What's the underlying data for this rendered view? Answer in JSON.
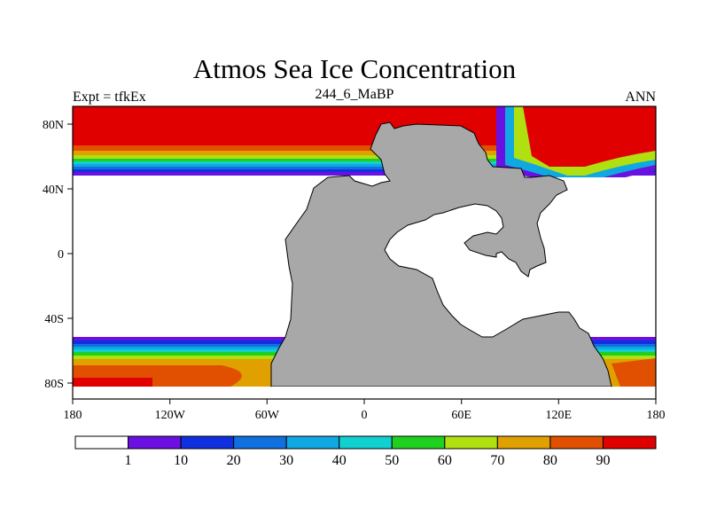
{
  "header": {
    "title": "Atmos Sea Ice Concentration",
    "experiment": "Expt = tfkEx",
    "case": "244_6_MaBP",
    "season": "ANN"
  },
  "axes": {
    "x_ticks": [
      "180",
      "120W",
      "60W",
      "0",
      "60E",
      "120E",
      "180"
    ],
    "y_ticks": [
      "80N",
      "40N",
      "0",
      "40S",
      "80S"
    ]
  },
  "colorbar": {
    "labels": [
      "1",
      "10",
      "20",
      "30",
      "40",
      "50",
      "60",
      "70",
      "80",
      "90"
    ],
    "colors": [
      "#ffffff",
      "#6a10e0",
      "#1030e0",
      "#1070e0",
      "#10a8e0",
      "#10d0d0",
      "#20d020",
      "#b0e010",
      "#e0a000",
      "#e05000",
      "#e00000"
    ]
  },
  "map": {
    "land_color": "#a8a8a8",
    "ocean_color": "#ffffff",
    "ice_levels": [
      "#6a10e0",
      "#1030e0",
      "#1070e0",
      "#10a8e0",
      "#10d0d0",
      "#20d020",
      "#b0e010",
      "#e0a000",
      "#e05000",
      "#e00000"
    ]
  }
}
